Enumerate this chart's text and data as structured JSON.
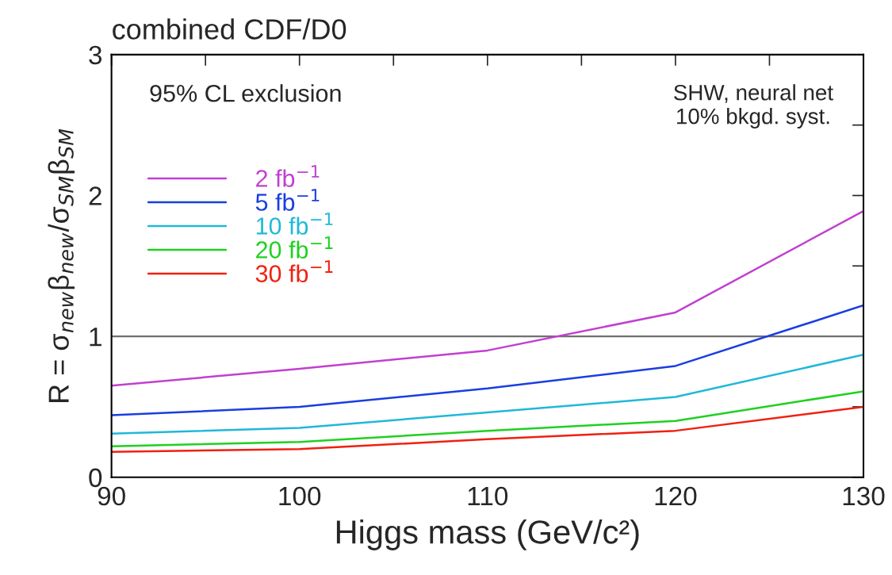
{
  "chart_data": {
    "type": "line",
    "title": "combined CDF/D0",
    "xlabel": "Higgs mass (GeV/c²)",
    "ylabel": "R = σ$_{new}$β$_{new}$/σ$_{SM}$β$_{SM}$",
    "x": [
      90,
      100,
      110,
      120,
      130
    ],
    "series": [
      {
        "name": "2 fb$^{−1}$",
        "color": "#c040d0",
        "values": [
          0.65,
          0.77,
          0.9,
          1.17,
          1.89
        ]
      },
      {
        "name": "5 fb$^{−1}$",
        "color": "#1a3ee0",
        "values": [
          0.44,
          0.5,
          0.63,
          0.79,
          1.22
        ]
      },
      {
        "name": "10 fb$^{−1}$",
        "color": "#20b8d8",
        "values": [
          0.31,
          0.35,
          0.46,
          0.57,
          0.87
        ]
      },
      {
        "name": "20 fb$^{−1}$",
        "color": "#20d020",
        "values": [
          0.22,
          0.25,
          0.33,
          0.4,
          0.61
        ]
      },
      {
        "name": "30 fb$^{−1}$",
        "color": "#f02010",
        "values": [
          0.18,
          0.2,
          0.27,
          0.33,
          0.5
        ]
      }
    ],
    "xlim": [
      90,
      130
    ],
    "ylim": [
      0,
      3
    ],
    "xticks": [
      90,
      {
        "value": 95,
        "label": null
      },
      100,
      {
        "value": 105,
        "label": null
      },
      110,
      {
        "value": 115,
        "label": null
      },
      120,
      {
        "value": 125,
        "label": null
      },
      130
    ],
    "yticks": [
      0,
      {
        "value": 0.5,
        "label": null
      },
      1,
      {
        "value": 1.5,
        "label": null
      },
      2,
      {
        "value": 2.5,
        "label": null
      },
      3
    ],
    "ref_lines": [
      {
        "axis": "y",
        "value": 1,
        "color": "#707070"
      }
    ],
    "annotations": [
      "95% CL exclusion",
      "SHW, neural net\n10% bkgd. syst."
    ],
    "legend": "top left",
    "grid": false,
    "marker": "none",
    "line_style": "solid"
  }
}
